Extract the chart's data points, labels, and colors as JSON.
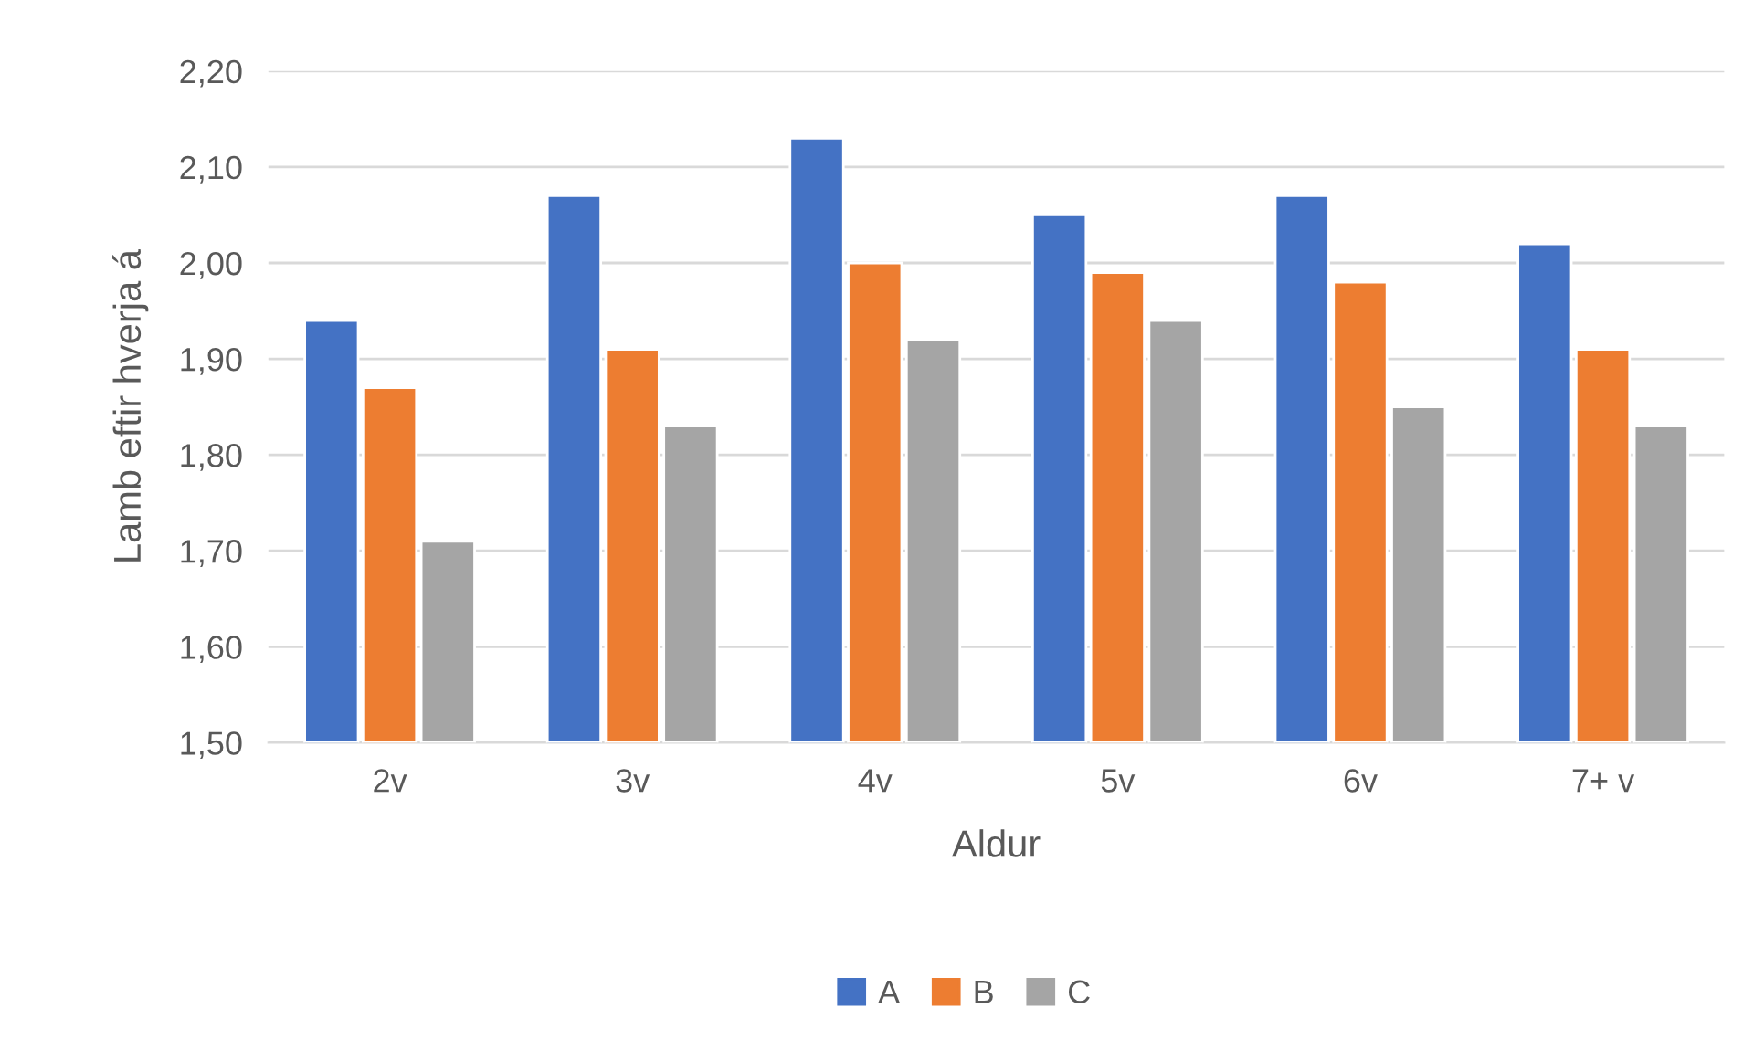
{
  "chart_data": {
    "type": "bar",
    "xlabel": "Aldur",
    "ylabel": "Lamb eftir hverja á",
    "categories": [
      "2v",
      "3v",
      "4v",
      "5v",
      "6v",
      "7+ v"
    ],
    "series": [
      {
        "name": "A",
        "color": "#4472c4",
        "values": [
          1.94,
          2.07,
          2.13,
          2.05,
          2.07,
          2.02
        ]
      },
      {
        "name": "B",
        "color": "#ed7d31",
        "values": [
          1.87,
          1.91,
          2.0,
          1.99,
          1.98,
          1.91
        ]
      },
      {
        "name": "C",
        "color": "#a5a5a5",
        "values": [
          1.71,
          1.83,
          1.92,
          1.94,
          1.85,
          1.83
        ]
      }
    ],
    "ylim": [
      1.5,
      2.2
    ],
    "yticks": [
      {
        "value": 1.5,
        "label": "1,50"
      },
      {
        "value": 1.6,
        "label": "1,60"
      },
      {
        "value": 1.7,
        "label": "1,70"
      },
      {
        "value": 1.8,
        "label": "1,80"
      },
      {
        "value": 1.9,
        "label": "1,90"
      },
      {
        "value": 2.0,
        "label": "2,00"
      },
      {
        "value": 2.1,
        "label": "2,10"
      },
      {
        "value": 2.2,
        "label": "2,20"
      }
    ],
    "grid": "y",
    "legend": "bottom"
  }
}
